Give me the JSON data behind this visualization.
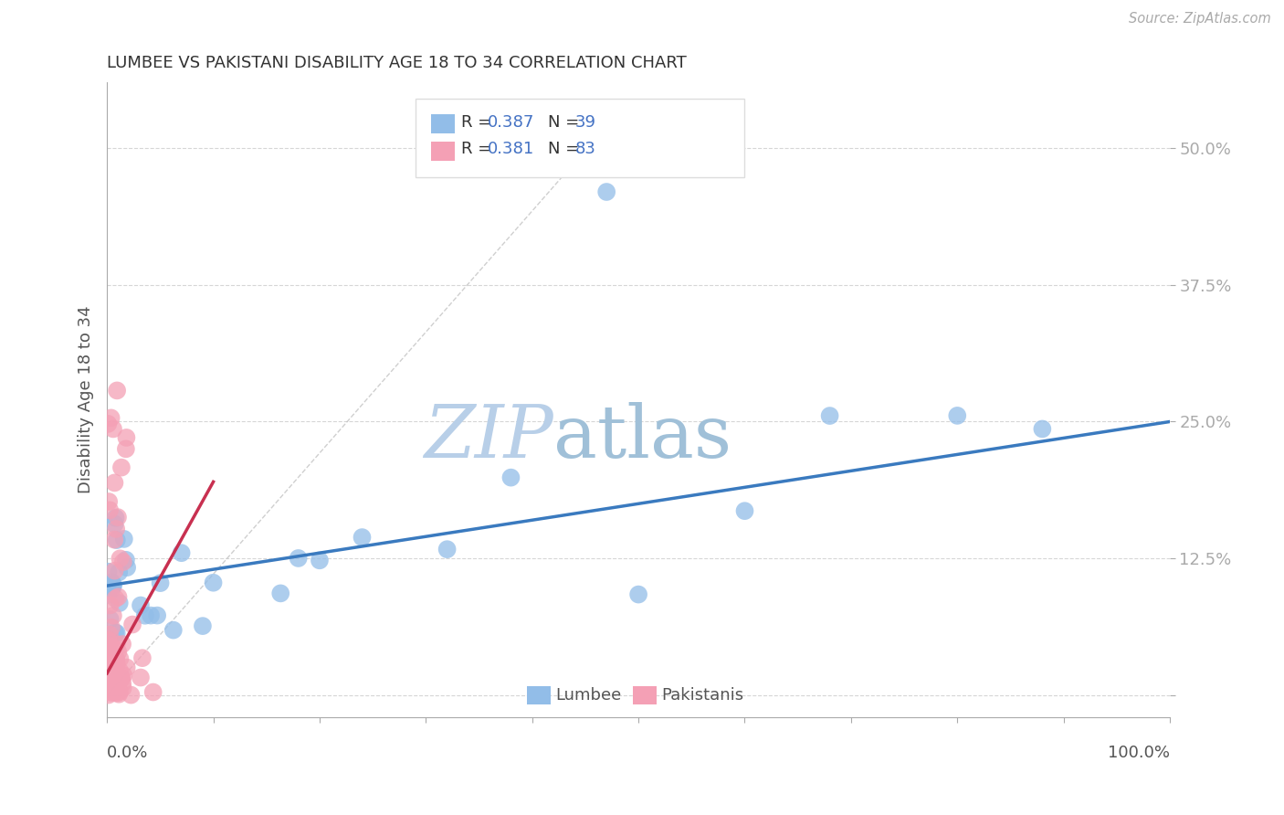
{
  "title": "LUMBEE VS PAKISTANI DISABILITY AGE 18 TO 34 CORRELATION CHART",
  "source": "Source: ZipAtlas.com",
  "ylabel": "Disability Age 18 to 34",
  "ytick_positions": [
    0.0,
    0.125,
    0.25,
    0.375,
    0.5
  ],
  "ytick_labels": [
    "",
    "12.5%",
    "25.0%",
    "37.5%",
    "50.0%"
  ],
  "xlim": [
    0.0,
    1.0
  ],
  "ylim": [
    -0.02,
    0.56
  ],
  "lumbee_R": 0.387,
  "lumbee_N": 39,
  "pakistani_R": 0.381,
  "pakistani_N": 83,
  "lumbee_color": "#92bde8",
  "pakistani_color": "#f4a0b5",
  "lumbee_line_color": "#3a7abf",
  "pakistani_line_color": "#c83050",
  "grid_color": "#cccccc",
  "watermark_zip_color": "#b8cfe8",
  "watermark_atlas_color": "#a0c0d8",
  "lumbee_line_x0": 0.0,
  "lumbee_line_y0": 0.1,
  "lumbee_line_x1": 1.0,
  "lumbee_line_y1": 0.25,
  "pak_line_x0": 0.0,
  "pak_line_y0": 0.02,
  "pak_line_x1": 0.1,
  "pak_line_y1": 0.195,
  "dash_line_x0": 0.0,
  "dash_line_y0": 0.0,
  "dash_line_x1": 0.47,
  "dash_line_y1": 0.52
}
